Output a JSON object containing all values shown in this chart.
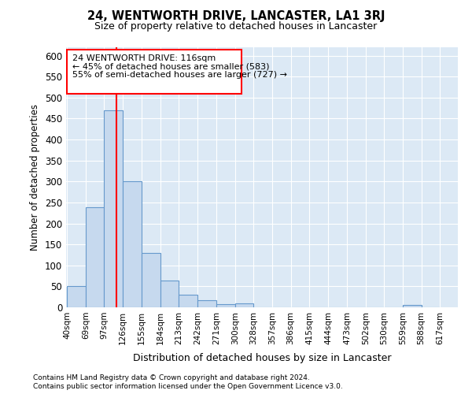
{
  "title1": "24, WENTWORTH DRIVE, LANCASTER, LA1 3RJ",
  "title2": "Size of property relative to detached houses in Lancaster",
  "xlabel": "Distribution of detached houses by size in Lancaster",
  "ylabel": "Number of detached properties",
  "annotation_line1": "24 WENTWORTH DRIVE: 116sqm",
  "annotation_line2": "← 45% of detached houses are smaller (583)",
  "annotation_line3": "55% of semi-detached houses are larger (727) →",
  "bins": [
    40,
    69,
    97,
    126,
    155,
    184,
    213,
    242,
    271,
    300,
    328,
    357,
    386,
    415,
    444,
    473,
    502,
    530,
    559,
    588,
    617
  ],
  "bar_heights": [
    50,
    238,
    470,
    300,
    130,
    63,
    30,
    17,
    8,
    10,
    0,
    0,
    0,
    0,
    0,
    0,
    0,
    0,
    5,
    0
  ],
  "bar_color": "#c6d9ee",
  "bar_edge_color": "#6699cc",
  "vline_color": "red",
  "vline_x": 116,
  "background_color": "#dce9f5",
  "grid_color": "white",
  "ylim": [
    0,
    620
  ],
  "yticks": [
    0,
    50,
    100,
    150,
    200,
    250,
    300,
    350,
    400,
    450,
    500,
    550,
    600
  ],
  "footnote1": "Contains HM Land Registry data © Crown copyright and database right 2024.",
  "footnote2": "Contains public sector information licensed under the Open Government Licence v3.0."
}
